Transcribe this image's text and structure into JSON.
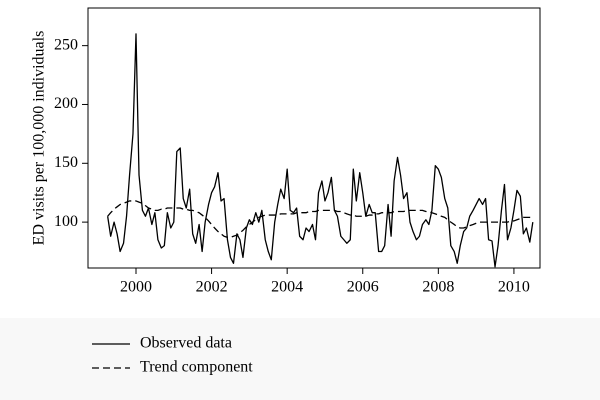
{
  "chart_data": {
    "type": "line",
    "ylabel": "ED visits per 100,000 individuals",
    "x": [
      1999.25,
      1999.33,
      1999.42,
      1999.5,
      1999.58,
      1999.67,
      1999.75,
      1999.83,
      1999.92,
      2000,
      2000.08,
      2000.17,
      2000.25,
      2000.33,
      2000.42,
      2000.5,
      2000.58,
      2000.67,
      2000.75,
      2000.83,
      2000.92,
      2001,
      2001.08,
      2001.17,
      2001.25,
      2001.33,
      2001.42,
      2001.5,
      2001.58,
      2001.67,
      2001.75,
      2001.83,
      2001.92,
      2002,
      2002.08,
      2002.17,
      2002.25,
      2002.33,
      2002.42,
      2002.5,
      2002.58,
      2002.67,
      2002.75,
      2002.83,
      2002.92,
      2003,
      2003.08,
      2003.17,
      2003.25,
      2003.33,
      2003.42,
      2003.5,
      2003.58,
      2003.67,
      2003.75,
      2003.83,
      2003.92,
      2004,
      2004.08,
      2004.17,
      2004.25,
      2004.33,
      2004.42,
      2004.5,
      2004.58,
      2004.67,
      2004.75,
      2004.83,
      2004.92,
      2005,
      2005.08,
      2005.17,
      2005.25,
      2005.33,
      2005.42,
      2005.5,
      2005.58,
      2005.67,
      2005.75,
      2005.83,
      2005.92,
      2006,
      2006.08,
      2006.17,
      2006.25,
      2006.33,
      2006.42,
      2006.5,
      2006.58,
      2006.67,
      2006.75,
      2006.83,
      2006.92,
      2007,
      2007.08,
      2007.17,
      2007.25,
      2007.33,
      2007.42,
      2007.5,
      2007.58,
      2007.67,
      2007.75,
      2007.83,
      2007.92,
      2008,
      2008.08,
      2008.17,
      2008.25,
      2008.33,
      2008.42,
      2008.5,
      2008.58,
      2008.67,
      2008.75,
      2008.83,
      2008.92,
      2009,
      2009.08,
      2009.17,
      2009.25,
      2009.33,
      2009.42,
      2009.5,
      2009.58,
      2009.67,
      2009.75,
      2009.83,
      2009.92,
      2010,
      2010.08,
      2010.17,
      2010.25,
      2010.33,
      2010.42,
      2010.5
    ],
    "series": [
      {
        "name": "Observed data",
        "color": "#000000",
        "line_style": "solid",
        "values": [
          105,
          88,
          100,
          90,
          75,
          82,
          105,
          140,
          175,
          260,
          140,
          110,
          105,
          112,
          98,
          108,
          85,
          78,
          80,
          108,
          95,
          100,
          160,
          163,
          120,
          112,
          128,
          90,
          82,
          98,
          75,
          100,
          115,
          125,
          130,
          142,
          118,
          120,
          85,
          70,
          65,
          90,
          85,
          70,
          95,
          102,
          98,
          108,
          100,
          110,
          85,
          75,
          68,
          100,
          115,
          128,
          120,
          145,
          110,
          108,
          112,
          88,
          85,
          95,
          92,
          98,
          85,
          125,
          135,
          118,
          125,
          138,
          110,
          105,
          88,
          85,
          82,
          85,
          145,
          118,
          142,
          125,
          105,
          115,
          108,
          108,
          75,
          75,
          80,
          115,
          88,
          135,
          155,
          140,
          120,
          125,
          100,
          92,
          85,
          88,
          98,
          102,
          98,
          110,
          148,
          145,
          138,
          120,
          112,
          80,
          75,
          65,
          80,
          92,
          95,
          105,
          110,
          115,
          120,
          115,
          120,
          85,
          84,
          62,
          80,
          110,
          132,
          85,
          95,
          110,
          127,
          122,
          90,
          95,
          83,
          100
        ]
      },
      {
        "name": "Trend component",
        "color": "#000000",
        "line_style": "dashed",
        "values": [
          105,
          108,
          111,
          113,
          115,
          116,
          117,
          118,
          118,
          118,
          117,
          116,
          114,
          112,
          111,
          110,
          110,
          111,
          111,
          112,
          112,
          112,
          112,
          112,
          111,
          111,
          110,
          110,
          109,
          108,
          106,
          104,
          101,
          98,
          95,
          92,
          90,
          88,
          87,
          87,
          88,
          89,
          91,
          93,
          96,
          98,
          100,
          102,
          104,
          105,
          106,
          106,
          106,
          106,
          106,
          107,
          107,
          107,
          107,
          107,
          108,
          108,
          108,
          108,
          109,
          109,
          109,
          110,
          110,
          110,
          110,
          110,
          110,
          109,
          109,
          108,
          107,
          106,
          106,
          105,
          105,
          105,
          105,
          106,
          106,
          107,
          107,
          108,
          108,
          108,
          108,
          109,
          109,
          109,
          109,
          110,
          110,
          110,
          110,
          110,
          110,
          109,
          109,
          108,
          107,
          106,
          105,
          104,
          102,
          100,
          98,
          96,
          95,
          95,
          96,
          97,
          98,
          99,
          100,
          100,
          100,
          100,
          100,
          100,
          100,
          100,
          100,
          100,
          101,
          101,
          102,
          103,
          104,
          104,
          104,
          103
        ]
      }
    ],
    "xlim": [
      1998.73,
      2010.69
    ],
    "xticks": [
      2000,
      2002,
      2004,
      2006,
      2008,
      2010
    ],
    "ylim": [
      61,
      282
    ],
    "yticks": [
      100,
      150,
      200,
      250
    ],
    "grid": false,
    "legend": "below"
  }
}
